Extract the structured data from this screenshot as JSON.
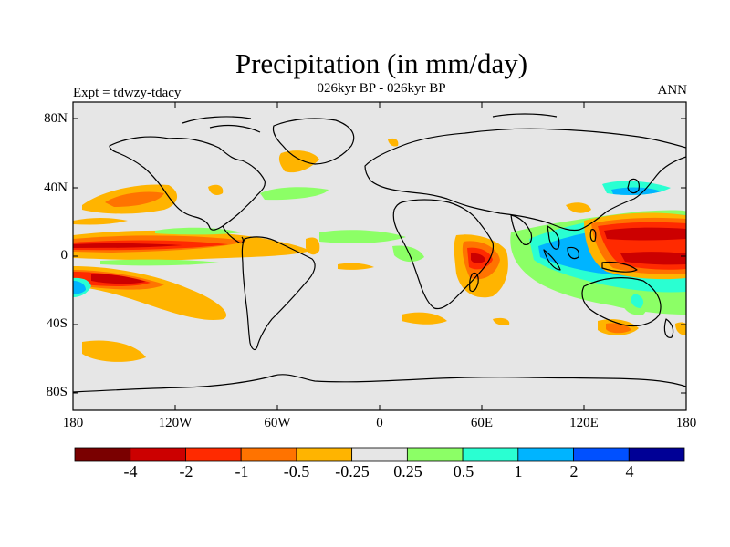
{
  "title": "Precipitation (in mm/day)",
  "subtitle": "026kyr BP - 026kyr BP",
  "left_string": "Expt = tdwzy-tdacy",
  "right_string": "ANN",
  "background_color": "#e6e6e6",
  "coastline_color": "#000000",
  "y_axis_labels": [
    "80N",
    "40N",
    "0",
    "40S",
    "80S"
  ],
  "x_axis_labels": [
    "180",
    "120W",
    "60W",
    "0",
    "60E",
    "120E",
    "180"
  ],
  "colorbar": {
    "labels": [
      "-4",
      "-2",
      "-1",
      "-0.5",
      "-0.25",
      "0.25",
      "0.5",
      "1",
      "2",
      "4"
    ],
    "colors": [
      "#7a0000",
      "#cc0000",
      "#ff2a00",
      "#ff7300",
      "#ffb400",
      "#e6e6e6",
      "#8cff66",
      "#2affd2",
      "#00b4ff",
      "#0050ff",
      "#000096"
    ]
  }
}
